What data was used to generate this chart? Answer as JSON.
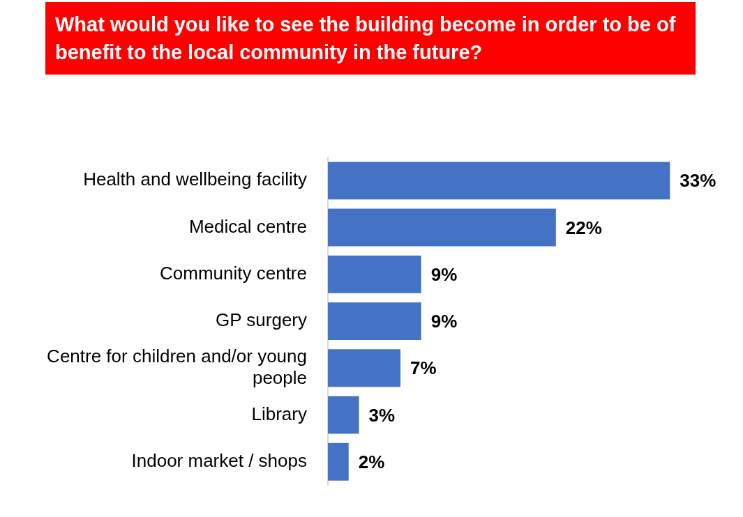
{
  "chart_data": {
    "type": "bar",
    "orientation": "horizontal",
    "title": "What would you like to see the building become in order to be of benefit to the local community in the future?",
    "categories": [
      "Health and wellbeing facility",
      "Medical centre",
      "Community centre",
      "GP surgery",
      "Centre for children and/or young people",
      "Library",
      "Indoor market / shops"
    ],
    "values": [
      33,
      22,
      9,
      9,
      7,
      3,
      2
    ],
    "value_labels": [
      "33%",
      "22%",
      "9%",
      "9%",
      "7%",
      "3%",
      "2%"
    ],
    "color": "#4472c4",
    "grid": false,
    "legend": false,
    "tick_labels": "y"
  }
}
